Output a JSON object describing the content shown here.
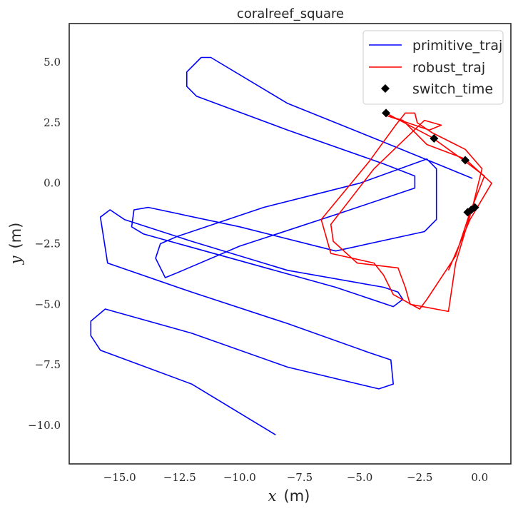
{
  "chart_data": {
    "type": "line",
    "title": "coralreef_square",
    "xlabel_var": "x",
    "xlabel_unit": "(m)",
    "ylabel_var": "y",
    "ylabel_unit": "(m)",
    "xlim": [
      -17.1,
      1.3
    ],
    "ylim": [
      -11.6,
      6.6
    ],
    "xticks": [
      -15.0,
      -12.5,
      -10.0,
      -7.5,
      -5.0,
      -2.5,
      0.0
    ],
    "xtick_labels": [
      "−15.0",
      "−12.5",
      "−10.0",
      "−7.5",
      "−5.0",
      "−2.5",
      "0.0"
    ],
    "yticks": [
      5.0,
      2.5,
      0.0,
      -2.5,
      -5.0,
      -7.5,
      -10.0
    ],
    "ytick_labels": [
      "5.0",
      "2.5",
      "0.0",
      "−2.5",
      "−5.0",
      "−7.5",
      "−10.0"
    ],
    "grid": false,
    "legend_position": "top-right",
    "series": [
      {
        "name": "primitive_traj",
        "kind": "line",
        "color": "#0000ff",
        "x": [
          -0.3,
          -4.0,
          -8.0,
          -11.2,
          -11.6,
          -12.2,
          -12.2,
          -11.8,
          -8.0,
          -4.0,
          -2.7,
          -2.7,
          -3.0,
          -6.0,
          -10.0,
          -12.6,
          -13.1,
          -13.5,
          -13.3,
          -12.6,
          -9.0,
          -5.0,
          -2.2,
          -1.8,
          -1.8,
          -2.3,
          -6.0,
          -10.0,
          -13.8,
          -14.4,
          -14.5,
          -14.0,
          -10.0,
          -6.0,
          -3.6,
          -3.2,
          -3.4,
          -4.0,
          -8.0,
          -12.0,
          -14.8,
          -15.4,
          -15.8,
          -15.5,
          -12.0,
          -8.0,
          -4.6,
          -3.7,
          -3.6,
          -4.2,
          -8.0,
          -12.0,
          -15.6,
          -16.2,
          -16.2,
          -15.8,
          -12.0,
          -8.5
        ],
        "y": [
          0.2,
          1.7,
          3.3,
          5.2,
          5.2,
          4.6,
          4.0,
          3.6,
          2.2,
          0.8,
          0.3,
          -0.2,
          -0.3,
          -1.3,
          -2.6,
          -3.7,
          -3.9,
          -3.1,
          -2.5,
          -2.2,
          -1.0,
          0.0,
          1.0,
          0.6,
          -1.5,
          -2.0,
          -2.8,
          -1.8,
          -1.0,
          -1.1,
          -1.8,
          -2.1,
          -3.2,
          -4.3,
          -5.1,
          -4.8,
          -4.5,
          -4.3,
          -3.6,
          -2.4,
          -1.5,
          -1.1,
          -1.4,
          -3.3,
          -4.5,
          -5.8,
          -7.0,
          -7.3,
          -8.3,
          -8.5,
          -7.6,
          -6.2,
          -5.2,
          -5.7,
          -6.3,
          -6.9,
          -8.3,
          -10.4
        ]
      },
      {
        "name": "robust_traj",
        "kind": "line",
        "color": "#ff0000",
        "x": [
          -3.9,
          -2.0,
          -0.6,
          0.2,
          -0.4,
          -1.0,
          -2.2,
          -2.5,
          -3.6,
          -4.0,
          -4.4,
          -6.2,
          -6.6,
          -4.6,
          -3.5,
          -3.1,
          -2.7,
          -2.6,
          -2.0,
          -0.6,
          0.1,
          -0.3,
          -1.0,
          -1.3,
          -2.9,
          -3.1,
          -3.4,
          -5.1,
          -6.1,
          -6.2,
          -4.4,
          -2.3,
          -1.6,
          -2.1,
          -3.9,
          -3.2,
          -2.9,
          -2.2,
          -0.6,
          0.5,
          -0.4,
          -1.3
        ],
        "y": [
          2.9,
          1.9,
          0.9,
          0.3,
          -1.2,
          -3.0,
          -4.8,
          -5.2,
          -4.6,
          -3.8,
          -3.3,
          -2.9,
          -1.5,
          0.9,
          2.4,
          2.9,
          2.9,
          2.5,
          2.1,
          1.4,
          0.6,
          -1.0,
          -3.3,
          -5.3,
          -5.0,
          -4.3,
          -3.5,
          -3.3,
          -2.4,
          -1.7,
          0.6,
          2.6,
          2.4,
          2.2,
          2.8,
          2.6,
          2.3,
          1.6,
          1.0,
          0.0,
          -1.5,
          -3.6
        ]
      },
      {
        "name": "switch_time",
        "kind": "marker",
        "marker": "diamond",
        "color": "#000000",
        "x": [
          -3.9,
          -1.9,
          -0.6,
          -0.5,
          -0.35,
          -0.2
        ],
        "y": [
          2.9,
          1.85,
          0.95,
          -1.2,
          -1.1,
          -1.0
        ]
      }
    ]
  }
}
